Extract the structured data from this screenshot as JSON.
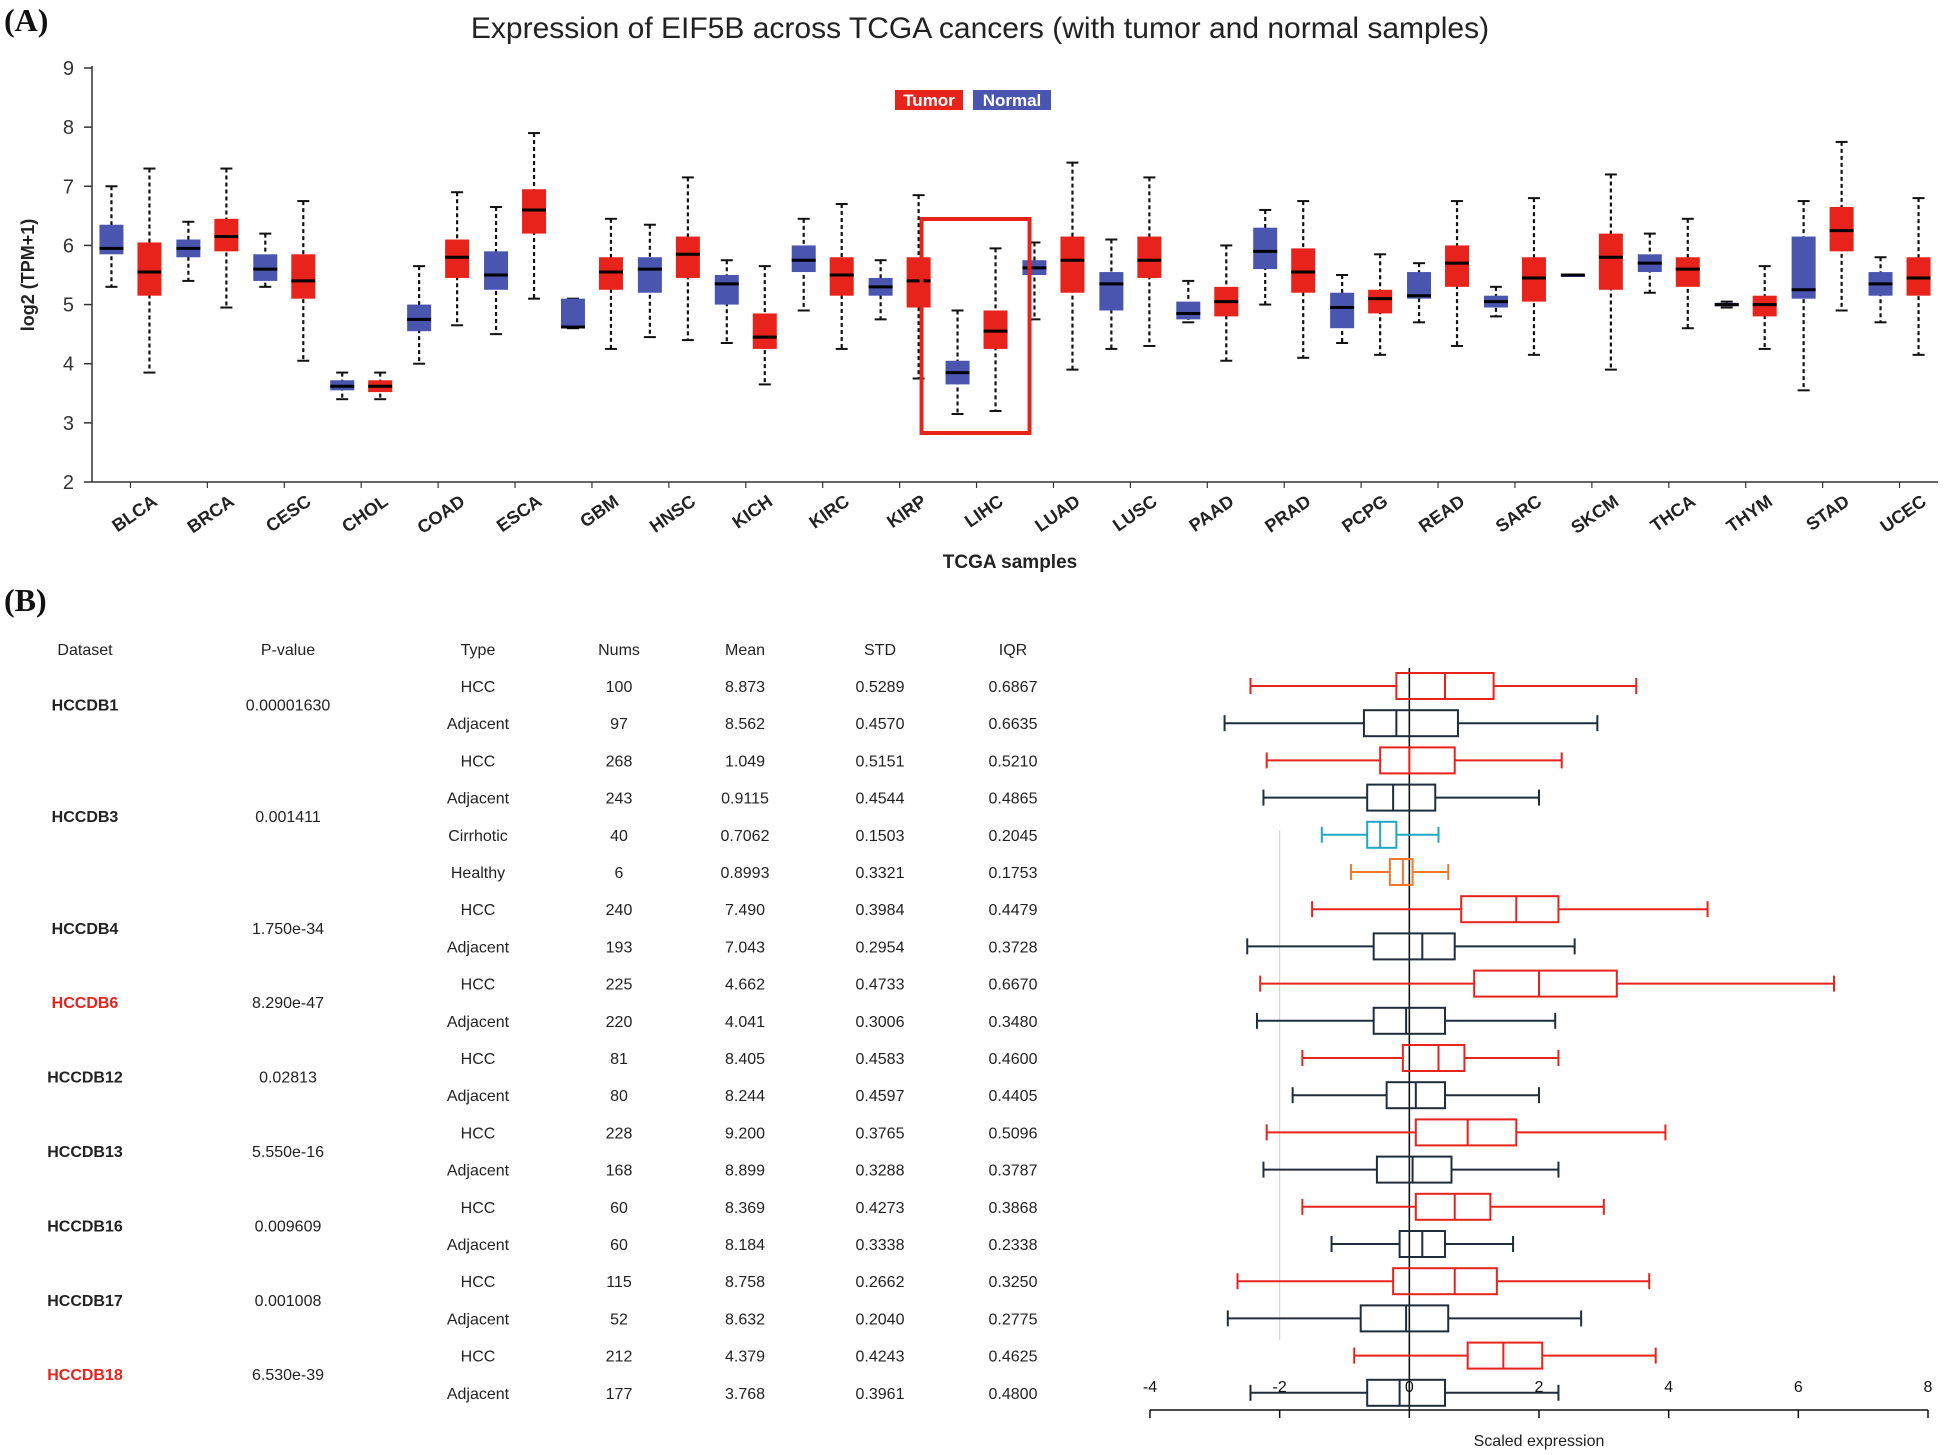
{
  "panel_a_label": "(A)",
  "panel_b_label": "(B)",
  "chart_data": [
    {
      "type": "box",
      "title": "Expression of EIF5B across TCGA cancers (with tumor and normal samples)",
      "ylabel": "log2 (TPM+1)",
      "xlabel": "TCGA samples",
      "ylim": [
        2,
        9
      ],
      "yticks": [
        2,
        3,
        4,
        5,
        6,
        7,
        8,
        9
      ],
      "legend": [
        {
          "name": "Tumor",
          "color": "#e8231c"
        },
        {
          "name": "Normal",
          "color": "#4a55b0"
        }
      ],
      "legend_position": "top-center",
      "highlight_category": "LIHC",
      "categories": [
        "BLCA",
        "BRCA",
        "CESC",
        "CHOL",
        "COAD",
        "ESCA",
        "GBM",
        "HNSC",
        "KICH",
        "KIRC",
        "KIRP",
        "LIHC",
        "LUAD",
        "LUSC",
        "PAAD",
        "PRAD",
        "PCPG",
        "READ",
        "SARC",
        "SKCM",
        "THCA",
        "THYM",
        "STAD",
        "UCEC"
      ],
      "boxes": [
        {
          "cat": "BLCA",
          "group": "Normal",
          "min": 5.3,
          "q1": 5.85,
          "median": 5.95,
          "q3": 6.35,
          "max": 7.0
        },
        {
          "cat": "BLCA",
          "group": "Tumor",
          "min": 3.85,
          "q1": 5.15,
          "median": 5.55,
          "q3": 6.05,
          "max": 7.3
        },
        {
          "cat": "BRCA",
          "group": "Normal",
          "min": 5.4,
          "q1": 5.8,
          "median": 5.95,
          "q3": 6.1,
          "max": 6.4
        },
        {
          "cat": "BRCA",
          "group": "Tumor",
          "min": 4.95,
          "q1": 5.9,
          "median": 6.15,
          "q3": 6.45,
          "max": 7.3
        },
        {
          "cat": "CESC",
          "group": "Normal",
          "min": 5.3,
          "q1": 5.4,
          "median": 5.6,
          "q3": 5.85,
          "max": 6.2
        },
        {
          "cat": "CESC",
          "group": "Tumor",
          "min": 4.05,
          "q1": 5.1,
          "median": 5.4,
          "q3": 5.85,
          "max": 6.75
        },
        {
          "cat": "CHOL",
          "group": "Normal",
          "min": 3.4,
          "q1": 3.55,
          "median": 3.62,
          "q3": 3.72,
          "max": 3.85
        },
        {
          "cat": "CHOL",
          "group": "Tumor",
          "min": 3.4,
          "q1": 3.52,
          "median": 3.62,
          "q3": 3.72,
          "max": 3.85
        },
        {
          "cat": "COAD",
          "group": "Normal",
          "min": 4.0,
          "q1": 4.55,
          "median": 4.75,
          "q3": 5.0,
          "max": 5.65
        },
        {
          "cat": "COAD",
          "group": "Tumor",
          "min": 4.65,
          "q1": 5.45,
          "median": 5.8,
          "q3": 6.1,
          "max": 6.9
        },
        {
          "cat": "ESCA",
          "group": "Normal",
          "min": 4.5,
          "q1": 5.25,
          "median": 5.5,
          "q3": 5.9,
          "max": 6.65
        },
        {
          "cat": "ESCA",
          "group": "Tumor",
          "min": 5.1,
          "q1": 6.2,
          "median": 6.6,
          "q3": 6.95,
          "max": 7.9
        },
        {
          "cat": "GBM",
          "group": "Normal",
          "min": 4.6,
          "q1": 4.6,
          "median": 4.62,
          "q3": 5.1,
          "max": 5.1
        },
        {
          "cat": "GBM",
          "group": "Tumor",
          "min": 4.25,
          "q1": 5.25,
          "median": 5.55,
          "q3": 5.8,
          "max": 6.45
        },
        {
          "cat": "HNSC",
          "group": "Normal",
          "min": 4.45,
          "q1": 5.2,
          "median": 5.6,
          "q3": 5.8,
          "max": 6.35
        },
        {
          "cat": "HNSC",
          "group": "Tumor",
          "min": 4.4,
          "q1": 5.45,
          "median": 5.85,
          "q3": 6.15,
          "max": 7.15
        },
        {
          "cat": "KICH",
          "group": "Normal",
          "min": 4.35,
          "q1": 5.0,
          "median": 5.35,
          "q3": 5.5,
          "max": 5.75
        },
        {
          "cat": "KICH",
          "group": "Tumor",
          "min": 3.65,
          "q1": 4.25,
          "median": 4.45,
          "q3": 4.85,
          "max": 5.65
        },
        {
          "cat": "KIRC",
          "group": "Normal",
          "min": 4.9,
          "q1": 5.55,
          "median": 5.75,
          "q3": 6.0,
          "max": 6.45
        },
        {
          "cat": "KIRC",
          "group": "Tumor",
          "min": 4.25,
          "q1": 5.15,
          "median": 5.5,
          "q3": 5.8,
          "max": 6.7
        },
        {
          "cat": "KIRP",
          "group": "Normal",
          "min": 4.75,
          "q1": 5.15,
          "median": 5.3,
          "q3": 5.45,
          "max": 5.75
        },
        {
          "cat": "KIRP",
          "group": "Tumor",
          "min": 3.75,
          "q1": 4.95,
          "median": 5.4,
          "q3": 5.8,
          "max": 6.85
        },
        {
          "cat": "LIHC",
          "group": "Normal",
          "min": 3.15,
          "q1": 3.65,
          "median": 3.85,
          "q3": 4.05,
          "max": 4.9
        },
        {
          "cat": "LIHC",
          "group": "Tumor",
          "min": 3.2,
          "q1": 4.25,
          "median": 4.55,
          "q3": 4.9,
          "max": 5.95
        },
        {
          "cat": "LUAD",
          "group": "Normal",
          "min": 4.75,
          "q1": 5.5,
          "median": 5.62,
          "q3": 5.75,
          "max": 6.05
        },
        {
          "cat": "LUAD",
          "group": "Tumor",
          "min": 3.9,
          "q1": 5.2,
          "median": 5.75,
          "q3": 6.15,
          "max": 7.4
        },
        {
          "cat": "LUSC",
          "group": "Normal",
          "min": 4.25,
          "q1": 4.9,
          "median": 5.35,
          "q3": 5.55,
          "max": 6.1
        },
        {
          "cat": "LUSC",
          "group": "Tumor",
          "min": 4.3,
          "q1": 5.45,
          "median": 5.75,
          "q3": 6.15,
          "max": 7.15
        },
        {
          "cat": "PAAD",
          "group": "Normal",
          "min": 4.7,
          "q1": 4.75,
          "median": 4.85,
          "q3": 5.05,
          "max": 5.4
        },
        {
          "cat": "PAAD",
          "group": "Tumor",
          "min": 4.05,
          "q1": 4.8,
          "median": 5.05,
          "q3": 5.3,
          "max": 6.0
        },
        {
          "cat": "PRAD",
          "group": "Normal",
          "min": 5.0,
          "q1": 5.6,
          "median": 5.9,
          "q3": 6.3,
          "max": 6.6
        },
        {
          "cat": "PRAD",
          "group": "Tumor",
          "min": 4.1,
          "q1": 5.2,
          "median": 5.55,
          "q3": 5.95,
          "max": 6.75
        },
        {
          "cat": "PCPG",
          "group": "Normal",
          "min": 4.35,
          "q1": 4.6,
          "median": 4.95,
          "q3": 5.2,
          "max": 5.5
        },
        {
          "cat": "PCPG",
          "group": "Tumor",
          "min": 4.15,
          "q1": 4.85,
          "median": 5.1,
          "q3": 5.25,
          "max": 5.85
        },
        {
          "cat": "READ",
          "group": "Normal",
          "min": 4.7,
          "q1": 5.1,
          "median": 5.15,
          "q3": 5.55,
          "max": 5.7
        },
        {
          "cat": "READ",
          "group": "Tumor",
          "min": 4.3,
          "q1": 5.3,
          "median": 5.7,
          "q3": 6.0,
          "max": 6.75
        },
        {
          "cat": "SARC",
          "group": "Normal",
          "min": 4.8,
          "q1": 4.95,
          "median": 5.05,
          "q3": 5.15,
          "max": 5.3
        },
        {
          "cat": "SARC",
          "group": "Tumor",
          "min": 4.15,
          "q1": 5.05,
          "median": 5.45,
          "q3": 5.8,
          "max": 6.8
        },
        {
          "cat": "SKCM",
          "group": "Normal",
          "min": 5.5,
          "q1": 5.5,
          "median": 5.5,
          "q3": 5.5,
          "max": 5.5
        },
        {
          "cat": "SKCM",
          "group": "Tumor",
          "min": 3.9,
          "q1": 5.25,
          "median": 5.8,
          "q3": 6.2,
          "max": 7.2
        },
        {
          "cat": "THCA",
          "group": "Normal",
          "min": 5.2,
          "q1": 5.55,
          "median": 5.7,
          "q3": 5.85,
          "max": 6.2
        },
        {
          "cat": "THCA",
          "group": "Tumor",
          "min": 4.6,
          "q1": 5.3,
          "median": 5.6,
          "q3": 5.8,
          "max": 6.45
        },
        {
          "cat": "THYM",
          "group": "Normal",
          "min": 4.95,
          "q1": 4.97,
          "median": 5.0,
          "q3": 5.03,
          "max": 5.05
        },
        {
          "cat": "THYM",
          "group": "Tumor",
          "min": 4.25,
          "q1": 4.8,
          "median": 5.0,
          "q3": 5.15,
          "max": 5.65
        },
        {
          "cat": "STAD",
          "group": "Normal",
          "min": 3.55,
          "q1": 5.1,
          "median": 5.25,
          "q3": 6.15,
          "max": 6.75
        },
        {
          "cat": "STAD",
          "group": "Tumor",
          "min": 4.9,
          "q1": 5.9,
          "median": 6.25,
          "q3": 6.65,
          "max": 7.75
        },
        {
          "cat": "UCEC",
          "group": "Normal",
          "min": 4.7,
          "q1": 5.15,
          "median": 5.35,
          "q3": 5.55,
          "max": 5.8
        },
        {
          "cat": "UCEC",
          "group": "Tumor",
          "min": 4.15,
          "q1": 5.15,
          "median": 5.45,
          "q3": 5.8,
          "max": 6.8
        }
      ]
    },
    {
      "type": "table",
      "headers": [
        "Dataset",
        "P-value",
        "Type",
        "Nums",
        "Mean",
        "STD",
        "IQR"
      ],
      "datasets": [
        {
          "name": "HCCDB1",
          "highlight": false,
          "pvalue": "0.00001630",
          "rows": [
            {
              "type": "HCC",
              "nums": "100",
              "mean": "8.873",
              "std": "0.5289",
              "iqr": "0.6867"
            },
            {
              "type": "Adjacent",
              "nums": "97",
              "mean": "8.562",
              "std": "0.4570",
              "iqr": "0.6635"
            }
          ]
        },
        {
          "name": "HCCDB3",
          "highlight": false,
          "pvalue": "0.001411",
          "rows": [
            {
              "type": "HCC",
              "nums": "268",
              "mean": "1.049",
              "std": "0.5151",
              "iqr": "0.5210"
            },
            {
              "type": "Adjacent",
              "nums": "243",
              "mean": "0.9115",
              "std": "0.4544",
              "iqr": "0.4865"
            },
            {
              "type": "Cirrhotic",
              "nums": "40",
              "mean": "0.7062",
              "std": "0.1503",
              "iqr": "0.2045"
            },
            {
              "type": "Healthy",
              "nums": "6",
              "mean": "0.8993",
              "std": "0.3321",
              "iqr": "0.1753"
            }
          ]
        },
        {
          "name": "HCCDB4",
          "highlight": false,
          "pvalue": "1.750e-34",
          "rows": [
            {
              "type": "HCC",
              "nums": "240",
              "mean": "7.490",
              "std": "0.3984",
              "iqr": "0.4479"
            },
            {
              "type": "Adjacent",
              "nums": "193",
              "mean": "7.043",
              "std": "0.2954",
              "iqr": "0.3728"
            }
          ]
        },
        {
          "name": "HCCDB6",
          "highlight": true,
          "pvalue": "8.290e-47",
          "rows": [
            {
              "type": "HCC",
              "nums": "225",
              "mean": "4.662",
              "std": "0.4733",
              "iqr": "0.6670"
            },
            {
              "type": "Adjacent",
              "nums": "220",
              "mean": "4.041",
              "std": "0.3006",
              "iqr": "0.3480"
            }
          ]
        },
        {
          "name": "HCCDB12",
          "highlight": false,
          "pvalue": "0.02813",
          "rows": [
            {
              "type": "HCC",
              "nums": "81",
              "mean": "8.405",
              "std": "0.4583",
              "iqr": "0.4600"
            },
            {
              "type": "Adjacent",
              "nums": "80",
              "mean": "8.244",
              "std": "0.4597",
              "iqr": "0.4405"
            }
          ]
        },
        {
          "name": "HCCDB13",
          "highlight": false,
          "pvalue": "5.550e-16",
          "rows": [
            {
              "type": "HCC",
              "nums": "228",
              "mean": "9.200",
              "std": "0.3765",
              "iqr": "0.5096"
            },
            {
              "type": "Adjacent",
              "nums": "168",
              "mean": "8.899",
              "std": "0.3288",
              "iqr": "0.3787"
            }
          ]
        },
        {
          "name": "HCCDB16",
          "highlight": false,
          "pvalue": "0.009609",
          "rows": [
            {
              "type": "HCC",
              "nums": "60",
              "mean": "8.369",
              "std": "0.4273",
              "iqr": "0.3868"
            },
            {
              "type": "Adjacent",
              "nums": "60",
              "mean": "8.184",
              "std": "0.3338",
              "iqr": "0.2338"
            }
          ]
        },
        {
          "name": "HCCDB17",
          "highlight": false,
          "pvalue": "0.001008",
          "rows": [
            {
              "type": "HCC",
              "nums": "115",
              "mean": "8.758",
              "std": "0.2662",
              "iqr": "0.3250"
            },
            {
              "type": "Adjacent",
              "nums": "52",
              "mean": "8.632",
              "std": "0.2040",
              "iqr": "0.2775"
            }
          ]
        },
        {
          "name": "HCCDB18",
          "highlight": true,
          "pvalue": "6.530e-39",
          "rows": [
            {
              "type": "HCC",
              "nums": "212",
              "mean": "4.379",
              "std": "0.4243",
              "iqr": "0.4625"
            },
            {
              "type": "Adjacent",
              "nums": "177",
              "mean": "3.768",
              "std": "0.3961",
              "iqr": "0.4800"
            }
          ]
        }
      ]
    },
    {
      "type": "box",
      "orientation": "horizontal",
      "xlabel": "Scaled expression",
      "xlim": [
        -4,
        8
      ],
      "xticks": [
        -4,
        -2,
        0,
        2,
        4,
        6,
        8
      ],
      "colors": {
        "HCC": "#e8231c",
        "Adjacent": "#1f2d3d",
        "Cirrhotic": "#22a6c8",
        "Healthy": "#f0782a"
      },
      "boxes": [
        {
          "type": "HCC",
          "min": -2.45,
          "q1": -0.2,
          "median": 0.55,
          "q3": 1.3,
          "max": 3.5
        },
        {
          "type": "Adjacent",
          "min": -2.85,
          "q1": -0.7,
          "median": -0.2,
          "q3": 0.75,
          "max": 2.9
        },
        {
          "type": "HCC",
          "min": -2.2,
          "q1": -0.45,
          "median": 0.0,
          "q3": 0.7,
          "max": 2.35
        },
        {
          "type": "Adjacent",
          "min": -2.25,
          "q1": -0.65,
          "median": -0.25,
          "q3": 0.4,
          "max": 2.0
        },
        {
          "type": "Cirrhotic",
          "min": -1.35,
          "q1": -0.65,
          "median": -0.45,
          "q3": -0.2,
          "max": 0.45
        },
        {
          "type": "Healthy",
          "min": -0.9,
          "q1": -0.3,
          "median": -0.1,
          "q3": 0.05,
          "max": 0.6
        },
        {
          "type": "HCC",
          "min": -1.5,
          "q1": 0.8,
          "median": 1.65,
          "q3": 2.3,
          "max": 4.6
        },
        {
          "type": "Adjacent",
          "min": -2.5,
          "q1": -0.55,
          "median": 0.2,
          "q3": 0.7,
          "max": 2.55
        },
        {
          "type": "HCC",
          "min": -2.3,
          "q1": 1.0,
          "median": 2.0,
          "q3": 3.2,
          "max": 6.55
        },
        {
          "type": "Adjacent",
          "min": -2.35,
          "q1": -0.55,
          "median": -0.05,
          "q3": 0.55,
          "max": 2.25
        },
        {
          "type": "HCC",
          "min": -1.65,
          "q1": -0.1,
          "median": 0.45,
          "q3": 0.85,
          "max": 2.3
        },
        {
          "type": "Adjacent",
          "min": -1.8,
          "q1": -0.35,
          "median": 0.1,
          "q3": 0.55,
          "max": 2.0
        },
        {
          "type": "HCC",
          "min": -2.2,
          "q1": 0.1,
          "median": 0.9,
          "q3": 1.65,
          "max": 3.95
        },
        {
          "type": "Adjacent",
          "min": -2.25,
          "q1": -0.5,
          "median": 0.05,
          "q3": 0.65,
          "max": 2.3
        },
        {
          "type": "HCC",
          "min": -1.65,
          "q1": 0.1,
          "median": 0.7,
          "q3": 1.25,
          "max": 3.0
        },
        {
          "type": "Adjacent",
          "min": -1.2,
          "q1": -0.15,
          "median": 0.2,
          "q3": 0.55,
          "max": 1.6
        },
        {
          "type": "HCC",
          "min": -2.65,
          "q1": -0.25,
          "median": 0.7,
          "q3": 1.35,
          "max": 3.7
        },
        {
          "type": "Adjacent",
          "min": -2.8,
          "q1": -0.75,
          "median": -0.05,
          "q3": 0.6,
          "max": 2.65
        },
        {
          "type": "HCC",
          "min": -0.85,
          "q1": 0.9,
          "median": 1.45,
          "q3": 2.05,
          "max": 3.8
        },
        {
          "type": "Adjacent",
          "min": -2.45,
          "q1": -0.65,
          "median": -0.15,
          "q3": 0.55,
          "max": 2.3
        }
      ]
    }
  ]
}
